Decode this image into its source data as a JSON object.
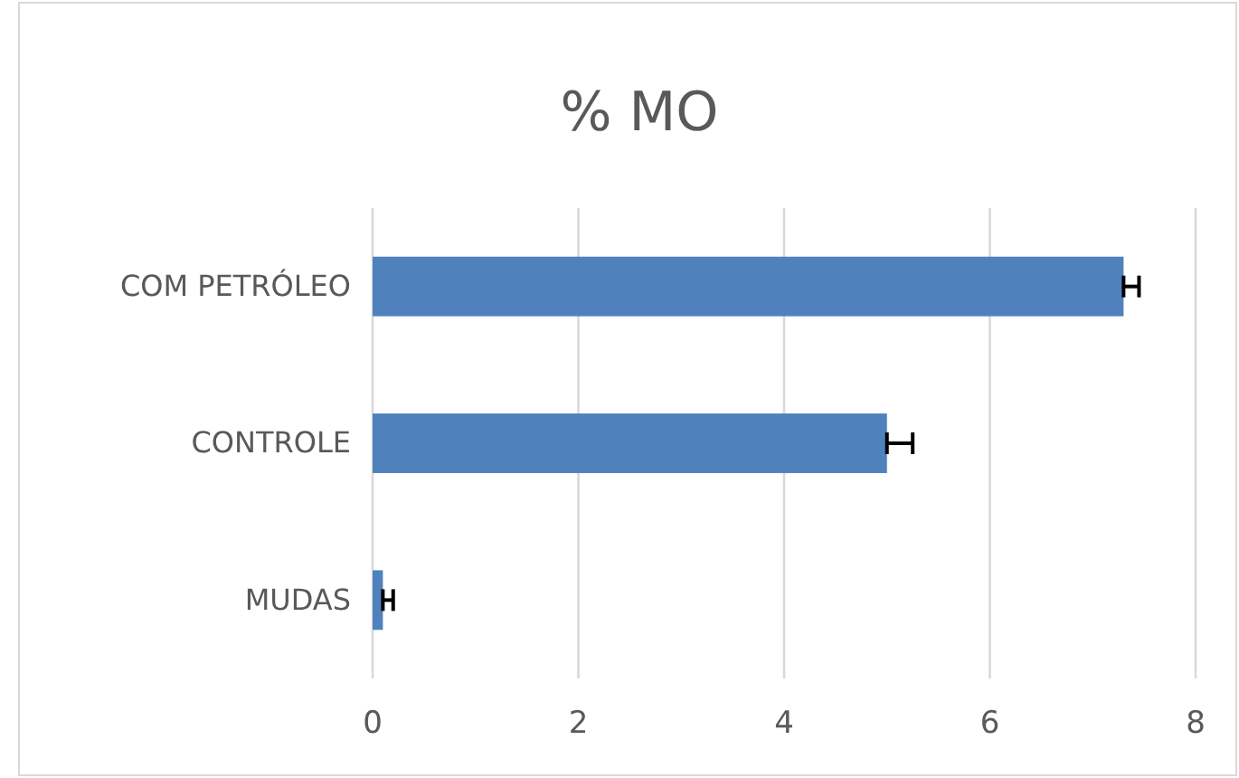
{
  "chart_data": {
    "type": "bar",
    "orientation": "horizontal",
    "title": "% MO",
    "categories": [
      "COM PETRÓLEO",
      "CONTROLE",
      "MUDAS"
    ],
    "values": [
      7.3,
      5.0,
      0.1
    ],
    "color": "#4f81bd",
    "errors": [
      [
        7.3,
        7.45
      ],
      [
        5.0,
        5.25
      ],
      [
        0.1,
        0.2
      ]
    ],
    "xlim": [
      0,
      8
    ],
    "xticks": [
      0,
      2,
      4,
      6,
      8
    ],
    "grid": "x"
  }
}
